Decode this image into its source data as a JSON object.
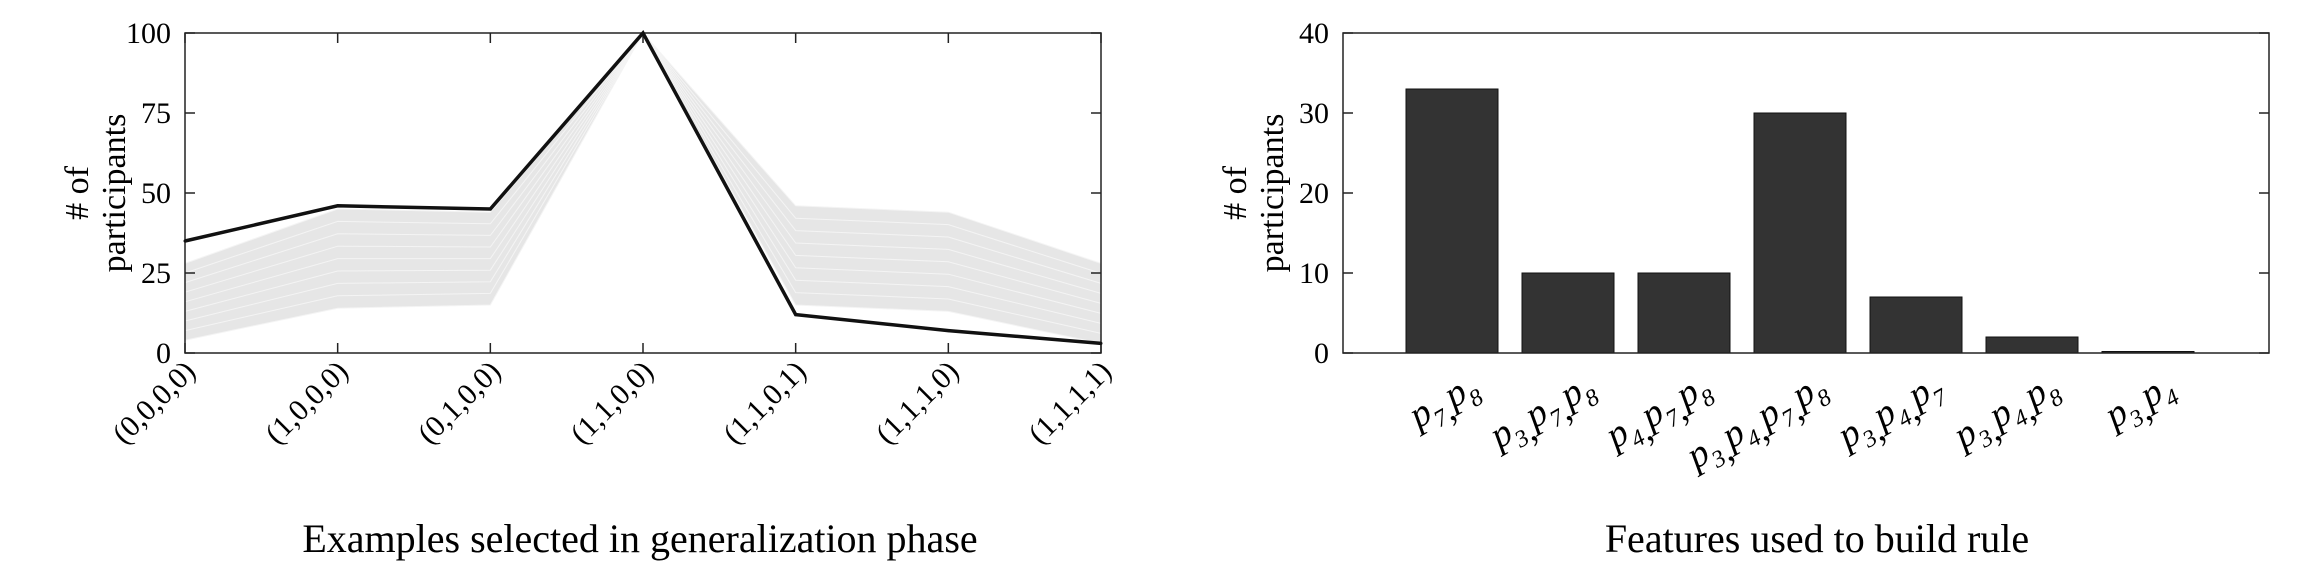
{
  "chart_data": [
    {
      "type": "line",
      "xlabel": "Examples selected in generalization phase",
      "ylabel": [
        "# of",
        "participants"
      ],
      "categories": [
        "(0,0,0,0)",
        "(1,0,0,0)",
        "(0,1,0,0)",
        "(1,1,0,0)",
        "(1,1,0,1)",
        "(1,1,1,0)",
        "(1,1,1,1)"
      ],
      "ylim": [
        0,
        100
      ],
      "yticks": [
        0,
        25,
        50,
        75,
        100
      ],
      "series": [
        {
          "values": [
            35,
            46,
            45,
            100,
            12,
            7,
            3
          ],
          "color": "#111111"
        }
      ],
      "band": {
        "lower": [
          4,
          14,
          15,
          100,
          15,
          13,
          3
        ],
        "upper": [
          28,
          45,
          44,
          100,
          46,
          44,
          28
        ],
        "color": "#e6e6e6"
      },
      "grid": false
    },
    {
      "type": "bar",
      "xlabel": "Features used to build rule",
      "ylabel": [
        "# of",
        "participants"
      ],
      "categories": [
        [
          [
            "p",
            "7"
          ],
          [
            "p",
            "8"
          ]
        ],
        [
          [
            "p",
            "3"
          ],
          [
            "p",
            "7"
          ],
          [
            "p",
            "8"
          ]
        ],
        [
          [
            "p",
            "4"
          ],
          [
            "p",
            "7"
          ],
          [
            "p",
            "8"
          ]
        ],
        [
          [
            "p",
            "3"
          ],
          [
            "p",
            "4"
          ],
          [
            "p",
            "7"
          ],
          [
            "p",
            "8"
          ]
        ],
        [
          [
            "p",
            "3"
          ],
          [
            "p",
            "4"
          ],
          [
            "p",
            "7"
          ]
        ],
        [
          [
            "p",
            "3"
          ],
          [
            "p",
            "4"
          ],
          [
            "p",
            "8"
          ]
        ],
        [
          [
            "p",
            "3"
          ],
          [
            "p",
            "4"
          ]
        ]
      ],
      "values": [
        33,
        10,
        10,
        30,
        7,
        2,
        0
      ],
      "ylim": [
        0,
        40
      ],
      "yticks": [
        0,
        10,
        20,
        30,
        40
      ],
      "bar_color": "#333333",
      "grid": false
    }
  ]
}
